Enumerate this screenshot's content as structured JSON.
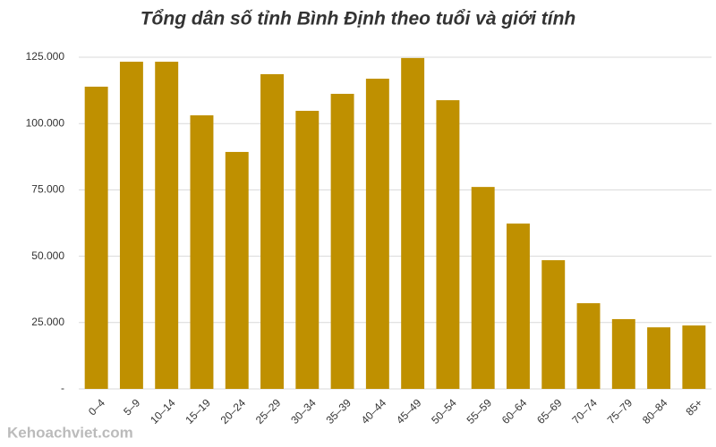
{
  "chart_data": {
    "type": "bar",
    "title": "Tổng dân số tỉnh Bình Định theo tuổi và giới tính",
    "categories": [
      "0–4",
      "5–9",
      "10–14",
      "15–19",
      "20–24",
      "25–29",
      "30–34",
      "35–39",
      "40–44",
      "45–49",
      "50–54",
      "55–59",
      "60–64",
      "65–69",
      "70–74",
      "75–79",
      "80–84",
      "85+"
    ],
    "values": [
      113900,
      123300,
      123300,
      103100,
      89300,
      118600,
      104800,
      111200,
      116900,
      124700,
      108800,
      76100,
      62300,
      48500,
      32300,
      26300,
      23200,
      23900
    ],
    "color": "#bf9000",
    "ylim": [
      0,
      125000
    ],
    "yticks": [
      {
        "value": 0,
        "label": "-"
      },
      {
        "value": 25000,
        "label": "25.000"
      },
      {
        "value": 50000,
        "label": "50.000"
      },
      {
        "value": 75000,
        "label": "75.000"
      },
      {
        "value": 100000,
        "label": "100.000"
      },
      {
        "value": 125000,
        "label": "125.000"
      }
    ],
    "grid": true,
    "watermark": "Kehoachviet.com"
  }
}
